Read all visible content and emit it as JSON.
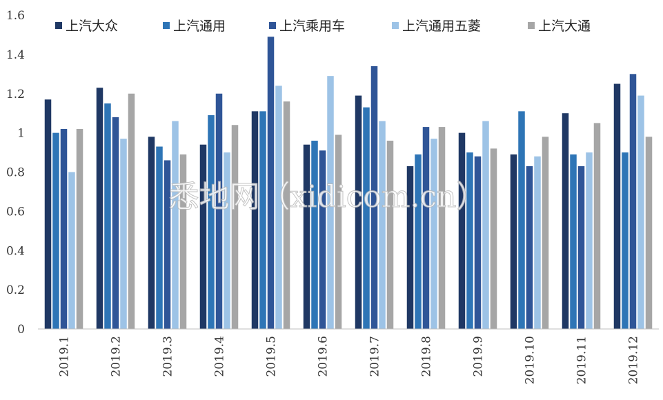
{
  "chart_data": {
    "type": "bar",
    "categories": [
      "2019.1",
      "2019.2",
      "2019.3",
      "2019.4",
      "2019.5",
      "2019.6",
      "2019.7",
      "2019.8",
      "2019.9",
      "2019.10",
      "2019.11",
      "2019.12"
    ],
    "series": [
      {
        "name": "上汽大众",
        "color": "#1f3864",
        "values": [
          1.17,
          1.23,
          0.98,
          0.94,
          1.11,
          0.94,
          1.19,
          0.83,
          1.0,
          0.89,
          1.1,
          1.25
        ]
      },
      {
        "name": "上汽通用",
        "color": "#2e75b6",
        "values": [
          1.0,
          1.15,
          0.93,
          1.09,
          1.11,
          0.96,
          1.13,
          0.89,
          0.9,
          1.11,
          0.89,
          0.9
        ]
      },
      {
        "name": "上汽乘用车",
        "color": "#2f5597",
        "values": [
          1.02,
          1.08,
          0.86,
          1.2,
          1.49,
          0.91,
          1.34,
          1.03,
          0.88,
          0.83,
          0.83,
          1.3
        ]
      },
      {
        "name": "上汽通用五菱",
        "color": "#9dc3e6",
        "values": [
          0.8,
          0.97,
          1.06,
          0.9,
          1.24,
          1.29,
          1.06,
          0.97,
          1.06,
          0.88,
          0.9,
          1.19
        ]
      },
      {
        "name": "上汽大通",
        "color": "#a6a6a6",
        "values": [
          1.02,
          1.2,
          0.89,
          1.04,
          1.16,
          0.99,
          0.96,
          1.03,
          0.92,
          0.98,
          1.05,
          0.98
        ]
      }
    ],
    "yticks": [
      "0",
      "0.2",
      "0.4",
      "0.6",
      "0.8",
      "1",
      "1.2",
      "1.4",
      "1.6"
    ],
    "ylim": [
      0,
      1.6
    ],
    "grid": false,
    "legend_position": "top"
  },
  "watermark": "悉地网（xidicom.cn）"
}
